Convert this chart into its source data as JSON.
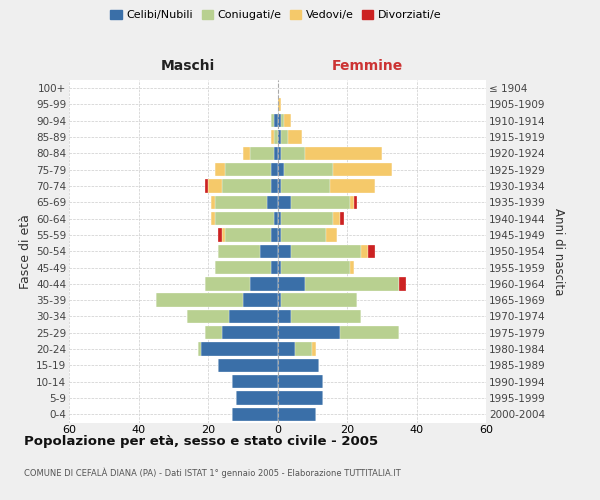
{
  "age_groups": [
    "0-4",
    "5-9",
    "10-14",
    "15-19",
    "20-24",
    "25-29",
    "30-34",
    "35-39",
    "40-44",
    "45-49",
    "50-54",
    "55-59",
    "60-64",
    "65-69",
    "70-74",
    "75-79",
    "80-84",
    "85-89",
    "90-94",
    "95-99",
    "100+"
  ],
  "birth_years": [
    "2000-2004",
    "1995-1999",
    "1990-1994",
    "1985-1989",
    "1980-1984",
    "1975-1979",
    "1970-1974",
    "1965-1969",
    "1960-1964",
    "1955-1959",
    "1950-1954",
    "1945-1949",
    "1940-1944",
    "1935-1939",
    "1930-1934",
    "1925-1929",
    "1920-1924",
    "1915-1919",
    "1910-1914",
    "1905-1909",
    "≤ 1904"
  ],
  "colors": {
    "celibe": "#3a6fa8",
    "coniugato": "#b8d090",
    "vedovo": "#f5c96a",
    "divorziato": "#cc2222"
  },
  "maschi": {
    "celibe": [
      13,
      12,
      13,
      17,
      22,
      16,
      14,
      10,
      8,
      2,
      5,
      2,
      1,
      3,
      2,
      2,
      1,
      0,
      1,
      0,
      0
    ],
    "coniugato": [
      0,
      0,
      0,
      0,
      1,
      5,
      12,
      25,
      13,
      16,
      12,
      13,
      17,
      15,
      14,
      13,
      7,
      1,
      1,
      0,
      0
    ],
    "vedovo": [
      0,
      0,
      0,
      0,
      0,
      0,
      0,
      0,
      0,
      0,
      0,
      1,
      1,
      1,
      4,
      3,
      2,
      1,
      0,
      0,
      0
    ],
    "divorziato": [
      0,
      0,
      0,
      0,
      0,
      0,
      0,
      0,
      0,
      0,
      0,
      1,
      0,
      0,
      1,
      0,
      0,
      0,
      0,
      0,
      0
    ]
  },
  "femmine": {
    "nubile": [
      11,
      13,
      13,
      12,
      5,
      18,
      4,
      1,
      8,
      1,
      4,
      1,
      1,
      4,
      1,
      2,
      1,
      1,
      1,
      0,
      0
    ],
    "coniugata": [
      0,
      0,
      0,
      0,
      5,
      17,
      20,
      22,
      27,
      20,
      20,
      13,
      15,
      17,
      14,
      14,
      7,
      2,
      1,
      0,
      0
    ],
    "vedova": [
      0,
      0,
      0,
      0,
      1,
      0,
      0,
      0,
      0,
      1,
      2,
      3,
      2,
      1,
      13,
      17,
      22,
      4,
      2,
      1,
      0
    ],
    "divorziata": [
      0,
      0,
      0,
      0,
      0,
      0,
      0,
      0,
      2,
      0,
      2,
      0,
      1,
      1,
      0,
      0,
      0,
      0,
      0,
      0,
      0
    ]
  },
  "title": "Popolazione per età, sesso e stato civile - 2005",
  "subtitle": "COMUNE DI CEFALÀ DIANA (PA) - Dati ISTAT 1° gennaio 2005 - Elaborazione TUTTITALIA.IT",
  "maschi_label": "Maschi",
  "femmine_label": "Femmine",
  "ylabel_left": "Fasce di età",
  "ylabel_right": "Anni di nascita",
  "xlim": 60,
  "legend_labels": [
    "Celibi/Nubili",
    "Coniugati/e",
    "Vedovi/e",
    "Divorziati/e"
  ],
  "bg_color": "#efefef",
  "plot_bg": "#ffffff"
}
